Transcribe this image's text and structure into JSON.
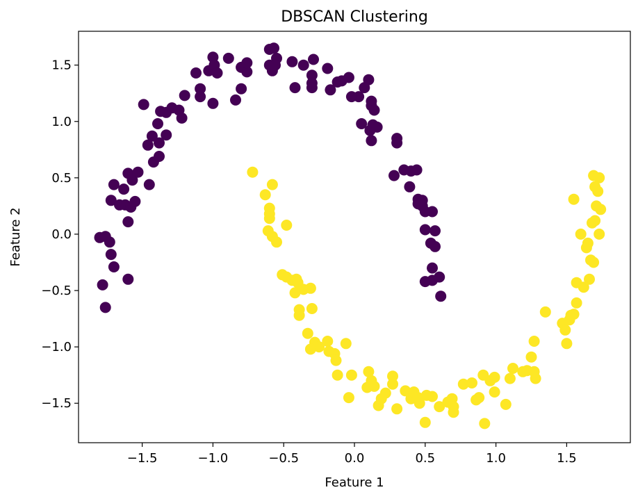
{
  "chart_data": {
    "type": "scatter",
    "title": "DBSCAN Clustering",
    "xlabel": "Feature 1",
    "ylabel": "Feature 2",
    "xlim": [
      -1.95,
      1.95
    ],
    "ylim": [
      -1.85,
      1.8
    ],
    "x_ticks": [
      -1.5,
      -1.0,
      -0.5,
      0.0,
      0.5,
      1.0,
      1.5
    ],
    "x_tick_labels": [
      "−1.5",
      "−1.0",
      "−0.5",
      "0.0",
      "0.5",
      "1.0",
      "1.5"
    ],
    "y_ticks": [
      1.5,
      1.0,
      0.5,
      0.0,
      -0.5,
      -1.0,
      -1.5
    ],
    "y_tick_labels": [
      "1.5",
      "1.0",
      "0.5",
      "0.0",
      "−0.5",
      "−1.0",
      "−1.5"
    ],
    "grid": false,
    "colors": {
      "cluster_0": "#440154",
      "cluster_1": "#fde725",
      "axes": "#000000",
      "background": "#ffffff"
    },
    "series": [
      {
        "cluster": 0,
        "color": "#440154",
        "points": [
          [
            -1.8,
            -0.03
          ],
          [
            -1.76,
            -0.02
          ],
          [
            -1.73,
            -0.07
          ],
          [
            -1.72,
            -0.18
          ],
          [
            -1.78,
            -0.45
          ],
          [
            -1.76,
            -0.65
          ],
          [
            -1.7,
            -0.29
          ],
          [
            -1.6,
            -0.4
          ],
          [
            -1.72,
            0.3
          ],
          [
            -1.7,
            0.44
          ],
          [
            -1.66,
            0.26
          ],
          [
            -1.63,
            0.4
          ],
          [
            -1.62,
            0.26
          ],
          [
            -1.6,
            0.11
          ],
          [
            -1.58,
            0.24
          ],
          [
            -1.55,
            0.29
          ],
          [
            -1.6,
            0.54
          ],
          [
            -1.57,
            0.48
          ],
          [
            -1.53,
            0.55
          ],
          [
            -1.45,
            0.44
          ],
          [
            -1.42,
            0.64
          ],
          [
            -1.38,
            0.69
          ],
          [
            -1.38,
            0.81
          ],
          [
            -1.33,
            0.88
          ],
          [
            -1.46,
            0.79
          ],
          [
            -1.43,
            0.87
          ],
          [
            -1.49,
            1.15
          ],
          [
            -1.39,
            0.98
          ],
          [
            -1.37,
            1.09
          ],
          [
            -1.33,
            1.08
          ],
          [
            -1.29,
            1.12
          ],
          [
            -1.24,
            1.1
          ],
          [
            -1.22,
            1.03
          ],
          [
            -1.2,
            1.23
          ],
          [
            -1.12,
            1.43
          ],
          [
            -1.09,
            1.22
          ],
          [
            -1.09,
            1.29
          ],
          [
            -1.03,
            1.45
          ],
          [
            -1.0,
            1.16
          ],
          [
            -1.0,
            1.57
          ],
          [
            -0.99,
            1.5
          ],
          [
            -0.97,
            1.43
          ],
          [
            -0.89,
            1.56
          ],
          [
            -0.84,
            1.19
          ],
          [
            -0.8,
            1.29
          ],
          [
            -0.8,
            1.48
          ],
          [
            -0.76,
            1.44
          ],
          [
            -0.76,
            1.52
          ],
          [
            -0.6,
            1.64
          ],
          [
            -0.57,
            1.65
          ],
          [
            -0.55,
            1.56
          ],
          [
            -0.6,
            1.5
          ],
          [
            -0.58,
            1.45
          ],
          [
            -0.56,
            1.5
          ],
          [
            -0.44,
            1.53
          ],
          [
            -0.42,
            1.3
          ],
          [
            -0.36,
            1.5
          ],
          [
            -0.29,
            1.55
          ],
          [
            -0.3,
            1.41
          ],
          [
            -0.3,
            1.34
          ],
          [
            -0.3,
            1.3
          ],
          [
            -0.19,
            1.47
          ],
          [
            -0.17,
            1.28
          ],
          [
            -0.12,
            1.35
          ],
          [
            -0.09,
            1.36
          ],
          [
            -0.04,
            1.39
          ],
          [
            0.03,
            1.22
          ],
          [
            0.1,
            1.37
          ],
          [
            -0.02,
            1.22
          ],
          [
            0.07,
            1.3
          ],
          [
            0.12,
            1.18
          ],
          [
            0.12,
            1.14
          ],
          [
            0.14,
            1.1
          ],
          [
            0.05,
            0.98
          ],
          [
            0.11,
            0.92
          ],
          [
            0.13,
            0.97
          ],
          [
            0.16,
            0.95
          ],
          [
            0.12,
            0.83
          ],
          [
            0.3,
            0.85
          ],
          [
            0.3,
            0.81
          ],
          [
            0.28,
            0.52
          ],
          [
            0.35,
            0.57
          ],
          [
            0.4,
            0.56
          ],
          [
            0.44,
            0.57
          ],
          [
            0.39,
            0.42
          ],
          [
            0.45,
            0.31
          ],
          [
            0.45,
            0.27
          ],
          [
            0.48,
            0.25
          ],
          [
            0.48,
            0.3
          ],
          [
            0.5,
            0.2
          ],
          [
            0.55,
            0.2
          ],
          [
            0.5,
            0.04
          ],
          [
            0.57,
            0.03
          ],
          [
            0.54,
            -0.08
          ],
          [
            0.57,
            -0.11
          ],
          [
            0.55,
            -0.3
          ],
          [
            0.5,
            -0.42
          ],
          [
            0.55,
            -0.41
          ],
          [
            0.6,
            -0.38
          ],
          [
            0.61,
            -0.55
          ]
        ]
      },
      {
        "cluster": 1,
        "color": "#fde725",
        "points": [
          [
            -0.72,
            0.55
          ],
          [
            -0.58,
            0.44
          ],
          [
            -0.63,
            0.35
          ],
          [
            -0.6,
            0.23
          ],
          [
            -0.6,
            0.18
          ],
          [
            -0.6,
            0.14
          ],
          [
            -0.61,
            0.03
          ],
          [
            -0.58,
            -0.02
          ],
          [
            -0.55,
            -0.07
          ],
          [
            -0.48,
            0.08
          ],
          [
            -0.51,
            -0.36
          ],
          [
            -0.48,
            -0.38
          ],
          [
            -0.44,
            -0.41
          ],
          [
            -0.41,
            -0.4
          ],
          [
            -0.4,
            -0.43
          ],
          [
            -0.42,
            -0.52
          ],
          [
            -0.36,
            -0.49
          ],
          [
            -0.31,
            -0.48
          ],
          [
            -0.39,
            -0.67
          ],
          [
            -0.3,
            -0.66
          ],
          [
            -0.39,
            -0.72
          ],
          [
            -0.33,
            -0.88
          ],
          [
            -0.28,
            -0.96
          ],
          [
            -0.25,
            -1.0
          ],
          [
            -0.31,
            -1.02
          ],
          [
            -0.19,
            -0.95
          ],
          [
            -0.18,
            -1.04
          ],
          [
            -0.14,
            -1.06
          ],
          [
            -0.13,
            -1.12
          ],
          [
            -0.06,
            -0.97
          ],
          [
            -0.12,
            -1.25
          ],
          [
            -0.02,
            -1.25
          ],
          [
            -0.04,
            -1.45
          ],
          [
            0.09,
            -1.36
          ],
          [
            0.1,
            -1.22
          ],
          [
            0.12,
            -1.3
          ],
          [
            0.14,
            -1.35
          ],
          [
            0.17,
            -1.52
          ],
          [
            0.22,
            -1.41
          ],
          [
            0.19,
            -1.46
          ],
          [
            0.27,
            -1.33
          ],
          [
            0.27,
            -1.26
          ],
          [
            0.3,
            -1.55
          ],
          [
            0.36,
            -1.39
          ],
          [
            0.4,
            -1.46
          ],
          [
            0.42,
            -1.4
          ],
          [
            0.45,
            -1.45
          ],
          [
            0.46,
            -1.5
          ],
          [
            0.5,
            -1.67
          ],
          [
            0.51,
            -1.43
          ],
          [
            0.55,
            -1.44
          ],
          [
            0.6,
            -1.53
          ],
          [
            0.66,
            -1.49
          ],
          [
            0.69,
            -1.46
          ],
          [
            0.7,
            -1.53
          ],
          [
            0.7,
            -1.58
          ],
          [
            0.77,
            -1.33
          ],
          [
            0.83,
            -1.32
          ],
          [
            0.86,
            -1.47
          ],
          [
            0.88,
            -1.45
          ],
          [
            0.91,
            -1.25
          ],
          [
            0.92,
            -1.68
          ],
          [
            0.96,
            -1.3
          ],
          [
            0.99,
            -1.27
          ],
          [
            0.99,
            -1.4
          ],
          [
            1.07,
            -1.51
          ],
          [
            1.1,
            -1.28
          ],
          [
            1.12,
            -1.19
          ],
          [
            1.19,
            -1.22
          ],
          [
            1.22,
            -1.21
          ],
          [
            1.28,
            -1.28
          ],
          [
            1.27,
            -1.22
          ],
          [
            1.25,
            -1.09
          ],
          [
            1.27,
            -0.95
          ],
          [
            1.35,
            -0.69
          ],
          [
            1.47,
            -0.79
          ],
          [
            1.49,
            -0.85
          ],
          [
            1.52,
            -0.76
          ],
          [
            1.55,
            -0.71
          ],
          [
            1.5,
            -0.97
          ],
          [
            1.57,
            -0.61
          ],
          [
            1.53,
            -0.72
          ],
          [
            1.57,
            -0.43
          ],
          [
            1.62,
            -0.47
          ],
          [
            1.66,
            -0.4
          ],
          [
            1.55,
            0.31
          ],
          [
            1.6,
            -0.0
          ],
          [
            1.65,
            -0.08
          ],
          [
            1.67,
            -0.23
          ],
          [
            1.69,
            -0.25
          ],
          [
            1.7,
            0.42
          ],
          [
            1.69,
            0.52
          ],
          [
            1.72,
            0.38
          ],
          [
            1.73,
            0.5
          ],
          [
            1.71,
            0.25
          ],
          [
            1.74,
            0.22
          ],
          [
            1.68,
            0.1
          ],
          [
            1.7,
            0.12
          ],
          [
            1.73,
            0.0
          ],
          [
            1.64,
            -0.12
          ]
        ]
      }
    ]
  }
}
